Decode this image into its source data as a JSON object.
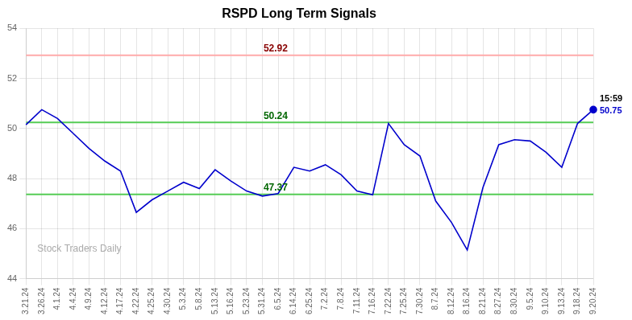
{
  "chart_data": {
    "type": "line",
    "title": "RSPD Long Term Signals",
    "categories": [
      "3.21.24",
      "3.26.24",
      "4.1.24",
      "4.4.24",
      "4.9.24",
      "4.12.24",
      "4.17.24",
      "4.22.24",
      "4.25.24",
      "4.30.24",
      "5.3.24",
      "5.8.24",
      "5.13.24",
      "5.16.24",
      "5.23.24",
      "5.31.24",
      "6.5.24",
      "6.14.24",
      "6.25.24",
      "7.2.24",
      "7.8.24",
      "7.11.24",
      "7.16.24",
      "7.22.24",
      "7.25.24",
      "7.30.24",
      "8.7.24",
      "8.12.24",
      "8.16.24",
      "8.21.24",
      "8.27.24",
      "8.30.24",
      "9.5.24",
      "9.10.24",
      "9.13.24",
      "9.18.24",
      "9.20.24"
    ],
    "values": [
      50.15,
      50.75,
      50.4,
      49.8,
      49.2,
      48.7,
      48.3,
      46.65,
      47.15,
      47.5,
      47.85,
      47.6,
      48.35,
      47.9,
      47.5,
      47.3,
      47.4,
      48.45,
      48.3,
      48.55,
      48.15,
      47.5,
      47.35,
      50.2,
      49.35,
      48.9,
      47.1,
      46.25,
      45.15,
      47.65,
      49.35,
      49.55,
      49.5,
      49.05,
      48.45,
      50.2,
      50.75
    ],
    "color": "#0000cc",
    "hlines": [
      {
        "value": 52.92,
        "label": "52.92",
        "color": "#ffaaaa",
        "label_color": "#880000"
      },
      {
        "value": 50.24,
        "label": "50.24",
        "color": "#55cc55",
        "label_color": "#006600"
      },
      {
        "value": 47.37,
        "label": "47.37",
        "color": "#55cc55",
        "label_color": "#006600"
      }
    ],
    "annotations": [
      {
        "text": "15:59",
        "color": "#000000"
      },
      {
        "text": "50.75",
        "color": "#0000cc"
      }
    ],
    "watermark": "Stock Traders Daily",
    "ylim": [
      44,
      54
    ],
    "yticks": [
      44,
      46,
      48,
      50,
      52,
      54
    ],
    "grid": true
  }
}
